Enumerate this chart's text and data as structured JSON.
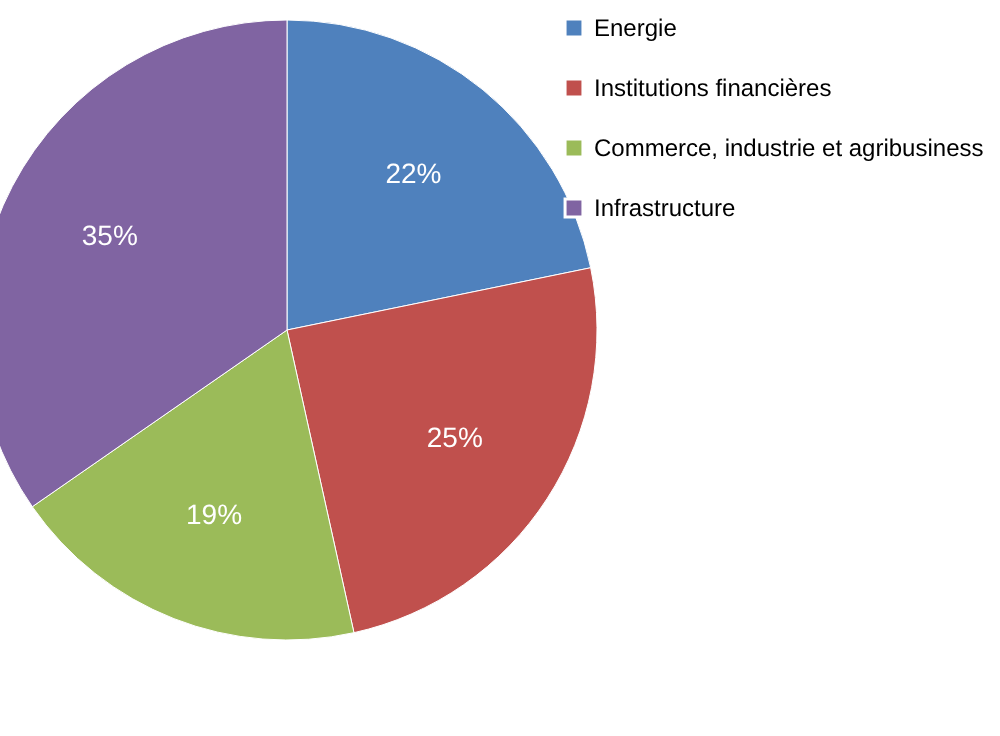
{
  "chart_data": {
    "type": "pie",
    "categories": [
      "Energie",
      "Institutions financières",
      "Commerce, industrie et agribusiness",
      "Infrastructure"
    ],
    "values": [
      22,
      25,
      19,
      35
    ],
    "colors": [
      "#4f81bd",
      "#c0504d",
      "#9bbb59",
      "#8064a2"
    ],
    "value_labels": [
      "22%",
      "25%",
      "19%",
      "35%"
    ],
    "legend": "right"
  }
}
